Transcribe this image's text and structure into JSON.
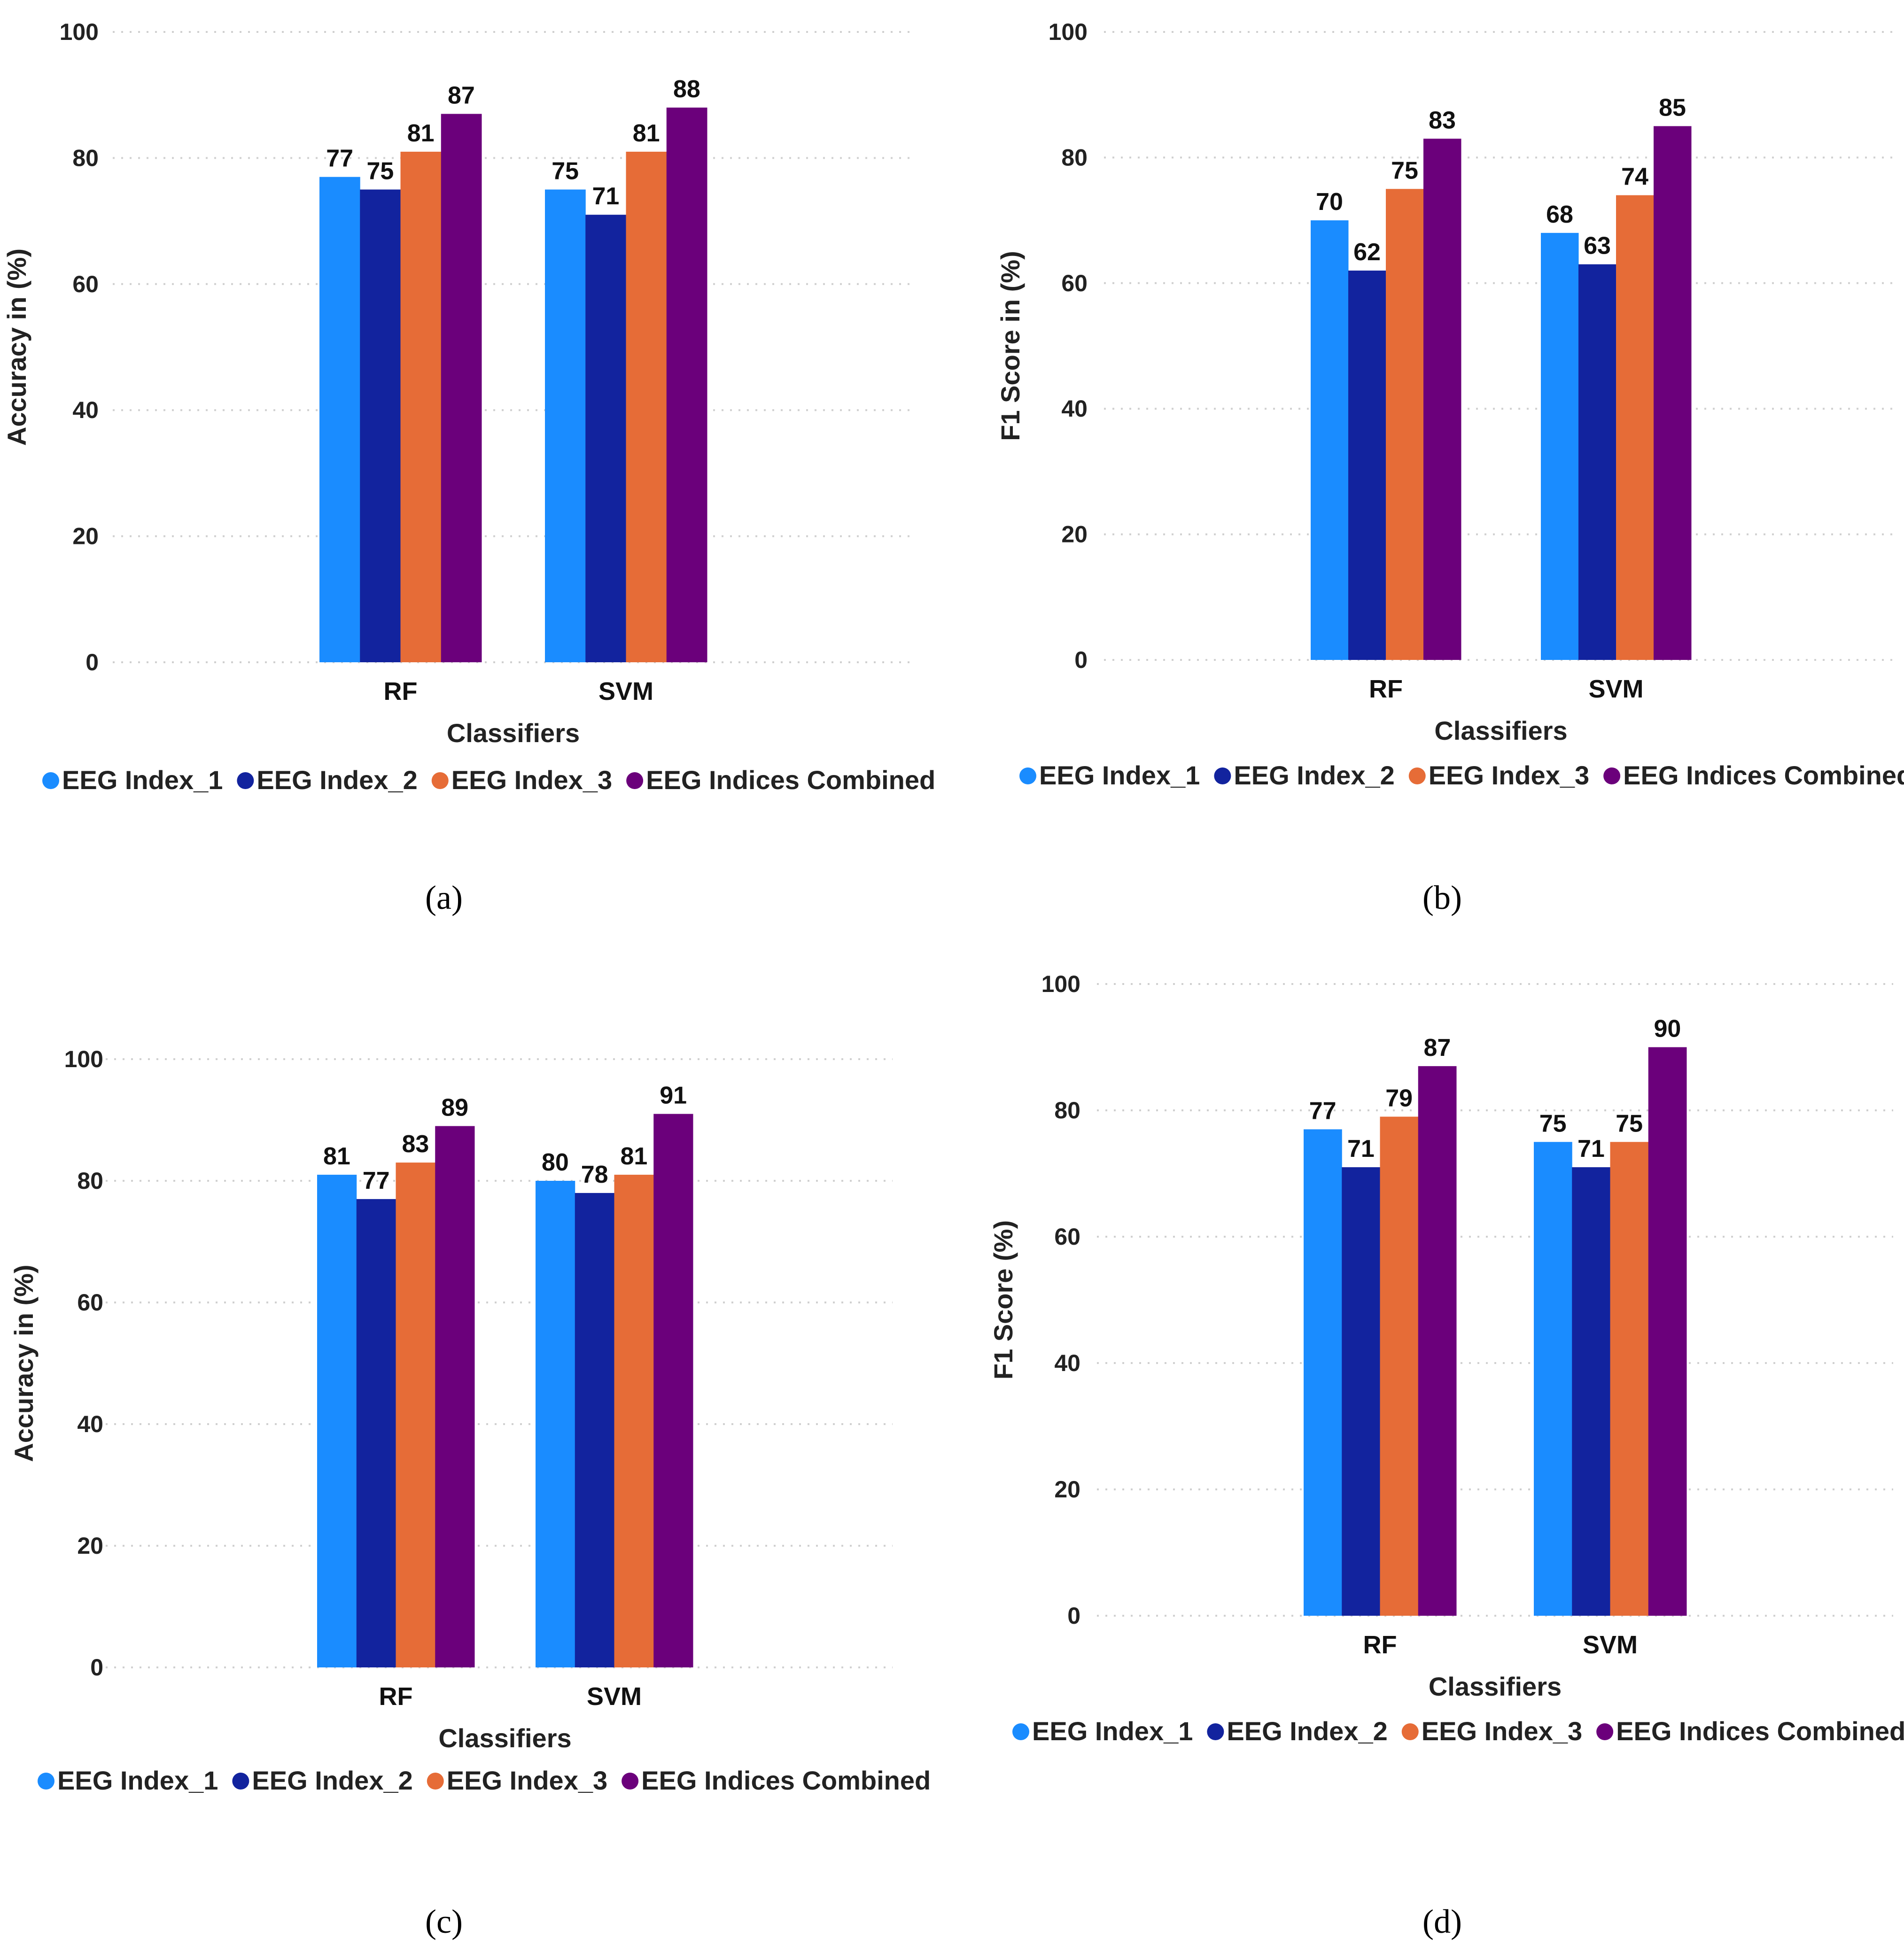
{
  "colors": {
    "series": [
      "#1a8cff",
      "#12239e",
      "#e66c37",
      "#6b007b"
    ],
    "text": "#222222",
    "grid": "#d0d0d0"
  },
  "chart_data": [
    {
      "panel": "a",
      "caption_letter": "a",
      "type": "bar",
      "ylabel": "Accuracy in (%)",
      "xlabel": "Classifiers",
      "ylim": [
        0,
        100
      ],
      "yticks": [
        0,
        20,
        40,
        60,
        80,
        100
      ],
      "grid": true,
      "legend": "bottom",
      "categories": [
        "RF",
        "SVM"
      ],
      "series": [
        {
          "name": "EEG Index_1",
          "values": [
            77,
            75
          ]
        },
        {
          "name": "EEG Index_2",
          "values": [
            75,
            71
          ]
        },
        {
          "name": "EEG Index_3",
          "values": [
            81,
            81
          ]
        },
        {
          "name": "EEG Indices Combined",
          "values": [
            87,
            88
          ]
        }
      ]
    },
    {
      "panel": "b",
      "caption_letter": "b",
      "type": "bar",
      "ylabel": "F1 Score in (%)",
      "xlabel": "Classifiers",
      "ylim": [
        0,
        100
      ],
      "yticks": [
        0,
        20,
        40,
        60,
        80,
        100
      ],
      "grid": true,
      "legend": "bottom",
      "categories": [
        "RF",
        "SVM"
      ],
      "series": [
        {
          "name": "EEG Index_1",
          "values": [
            70,
            68
          ]
        },
        {
          "name": "EEG Index_2",
          "values": [
            62,
            63
          ]
        },
        {
          "name": "EEG Index_3",
          "values": [
            75,
            74
          ]
        },
        {
          "name": "EEG Indices Combined",
          "values": [
            83,
            85
          ]
        }
      ]
    },
    {
      "panel": "c",
      "caption_letter": "c",
      "type": "bar",
      "ylabel": "Accuracy in (%)",
      "xlabel": "Classifiers",
      "ylim": [
        0,
        100
      ],
      "yticks": [
        0,
        20,
        40,
        60,
        80,
        100
      ],
      "grid": true,
      "legend": "bottom",
      "categories": [
        "RF",
        "SVM"
      ],
      "series": [
        {
          "name": "EEG Index_1",
          "values": [
            81,
            80
          ]
        },
        {
          "name": "EEG Index_2",
          "values": [
            77,
            78
          ]
        },
        {
          "name": "EEG Index_3",
          "values": [
            83,
            81
          ]
        },
        {
          "name": "EEG Indices Combined",
          "values": [
            89,
            91
          ]
        }
      ]
    },
    {
      "panel": "d",
      "caption_letter": "d",
      "type": "bar",
      "ylabel": "F1 Score (%)",
      "xlabel": "Classifiers",
      "ylim": [
        0,
        100
      ],
      "yticks": [
        0,
        20,
        40,
        60,
        80,
        100
      ],
      "grid": true,
      "legend": "bottom",
      "categories": [
        "RF",
        "SVM"
      ],
      "series": [
        {
          "name": "EEG Index_1",
          "values": [
            77,
            75
          ]
        },
        {
          "name": "EEG Index_2",
          "values": [
            71,
            71
          ]
        },
        {
          "name": "EEG Index_3",
          "values": [
            79,
            75
          ]
        },
        {
          "name": "EEG Indices Combined",
          "values": [
            87,
            90
          ]
        }
      ]
    }
  ]
}
